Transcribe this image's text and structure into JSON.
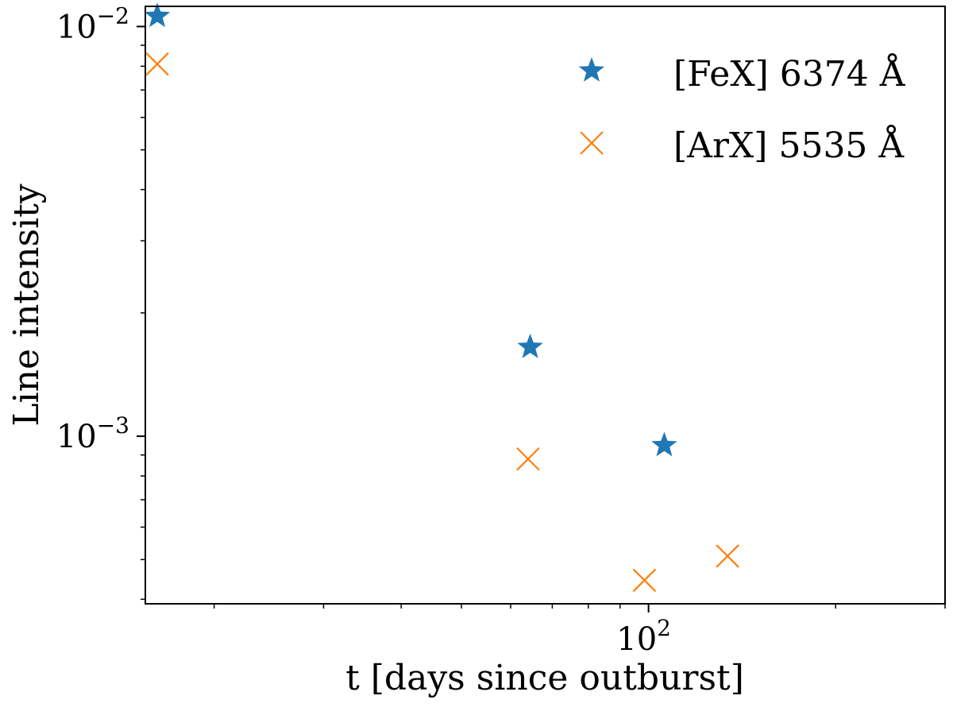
{
  "chart_data": {
    "type": "scatter",
    "xlabel": "t [days since outburst]",
    "ylabel": "Line intensity",
    "x_scale": "log",
    "y_scale": "log",
    "xlim": [
      15.5,
      300
    ],
    "ylim": [
      0.00039,
      0.0112
    ],
    "x_major_ticks": [
      {
        "value": 100,
        "base": "10",
        "exp": "2"
      }
    ],
    "x_minor_ticks": [
      20,
      30,
      40,
      50,
      60,
      70,
      80,
      90,
      200,
      300
    ],
    "y_major_ticks": [
      {
        "value": 0.01,
        "base": "10",
        "exp": "−2"
      },
      {
        "value": 0.001,
        "base": "10",
        "exp": "−3"
      }
    ],
    "y_minor_ticks": [
      0.0004,
      0.0005,
      0.0006,
      0.0007,
      0.0008,
      0.0009,
      0.002,
      0.003,
      0.004,
      0.005,
      0.006,
      0.007,
      0.008,
      0.009
    ],
    "grid": false,
    "legend_position": "upper right",
    "series": [
      {
        "name": "[FeX] 6374 Å",
        "marker": "star",
        "color": "#1f77b4",
        "points": [
          {
            "x": 16.2,
            "y": 0.0106
          },
          {
            "x": 64.5,
            "y": 0.00165
          },
          {
            "x": 106,
            "y": 0.00095
          }
        ]
      },
      {
        "name": "[ArX] 5535 Å",
        "marker": "x",
        "color": "#ff7f0e",
        "points": [
          {
            "x": 16.2,
            "y": 0.0081
          },
          {
            "x": 64.0,
            "y": 0.00088
          },
          {
            "x": 98.5,
            "y": 0.000445
          },
          {
            "x": 134,
            "y": 0.00051
          }
        ]
      }
    ]
  }
}
